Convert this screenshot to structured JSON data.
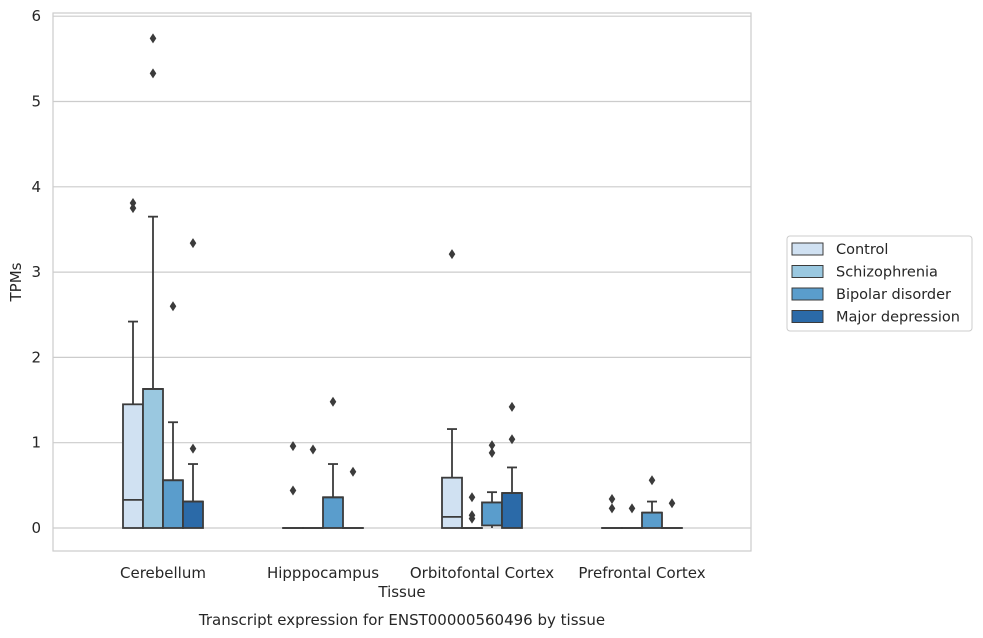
{
  "chart_data": {
    "type": "box",
    "title": "",
    "caption": "Transcript expression for ENST00000560496 by tissue",
    "xlabel": "Tissue",
    "ylabel": "TPMs",
    "ylim": [
      -0.28,
      6.05
    ],
    "yticks": [
      0,
      1,
      2,
      3,
      4,
      5,
      6
    ],
    "grid": true,
    "legend_position": "right",
    "categories": [
      "Cerebellum",
      "Hipppocampus",
      "Orbitofontal Cortex",
      "Prefrontal Cortex"
    ],
    "series": [
      {
        "name": "Control",
        "color": "#d0e1f2",
        "boxes": [
          {
            "q1": 0,
            "median": 0.33,
            "q3": 1.45,
            "whisker_low": 0,
            "whisker_high": 2.42,
            "outliers": [
              3.75,
              3.81
            ]
          },
          {
            "q1": 0,
            "median": 0,
            "q3": 0,
            "whisker_low": 0,
            "whisker_high": 0,
            "outliers": [
              0.44,
              0.96
            ]
          },
          {
            "q1": 0,
            "median": 0.13,
            "q3": 0.59,
            "whisker_low": 0,
            "whisker_high": 1.16,
            "outliers": [
              3.21
            ]
          },
          {
            "q1": 0,
            "median": 0,
            "q3": 0,
            "whisker_low": 0,
            "whisker_high": 0,
            "outliers": [
              0.23,
              0.34
            ]
          }
        ]
      },
      {
        "name": "Schizophrenia",
        "color": "#9ac8e0",
        "boxes": [
          {
            "q1": 0,
            "median": 1.63,
            "q3": 1.63,
            "whisker_low": 0,
            "whisker_high": 3.65,
            "outliers": [
              5.33,
              5.74
            ]
          },
          {
            "q1": 0,
            "median": 0,
            "q3": 0,
            "whisker_low": 0,
            "whisker_high": 0,
            "outliers": [
              0.92
            ]
          },
          {
            "q1": 0,
            "median": 0,
            "q3": 0,
            "whisker_low": 0,
            "whisker_high": 0,
            "outliers": [
              0.11,
              0.15,
              0.36
            ]
          },
          {
            "q1": 0,
            "median": 0,
            "q3": 0,
            "whisker_low": 0,
            "whisker_high": 0,
            "outliers": [
              0.23
            ]
          }
        ]
      },
      {
        "name": "Bipolar disorder",
        "color": "#5a9dcc",
        "boxes": [
          {
            "q1": 0,
            "median": 0.56,
            "q3": 0.56,
            "whisker_low": 0,
            "whisker_high": 1.24,
            "outliers": [
              2.6
            ]
          },
          {
            "q1": 0,
            "median": 0.36,
            "q3": 0.36,
            "whisker_low": 0,
            "whisker_high": 0.75,
            "outliers": [
              1.48
            ]
          },
          {
            "q1": 0.03,
            "median": 0.3,
            "q3": 0.3,
            "whisker_low": 0,
            "whisker_high": 0.42,
            "outliers": [
              0.88,
              0.97
            ]
          },
          {
            "q1": 0,
            "median": 0.18,
            "q3": 0.18,
            "whisker_low": 0,
            "whisker_high": 0.31,
            "outliers": [
              0.56
            ]
          }
        ]
      },
      {
        "name": "Major depression",
        "color": "#2b6aa8",
        "boxes": [
          {
            "q1": 0,
            "median": 0.31,
            "q3": 0.31,
            "whisker_low": 0,
            "whisker_high": 0.75,
            "outliers": [
              0.93,
              3.34
            ]
          },
          {
            "q1": 0,
            "median": 0,
            "q3": 0,
            "whisker_low": 0,
            "whisker_high": 0,
            "outliers": [
              0.66
            ]
          },
          {
            "q1": 0,
            "median": 0.41,
            "q3": 0.41,
            "whisker_low": 0,
            "whisker_high": 0.71,
            "outliers": [
              1.04,
              1.42
            ]
          },
          {
            "q1": 0,
            "median": 0,
            "q3": 0,
            "whisker_low": 0,
            "whisker_high": 0,
            "outliers": [
              0.29
            ]
          }
        ]
      }
    ]
  }
}
